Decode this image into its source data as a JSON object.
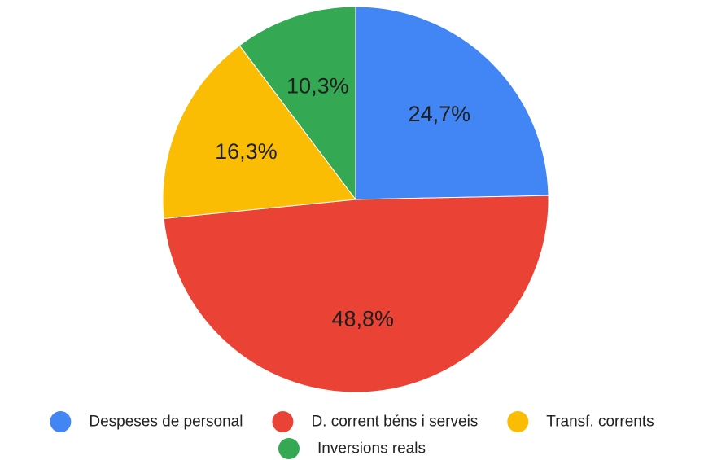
{
  "chart_data": {
    "type": "pie",
    "slices": [
      {
        "name": "Despeses de personal",
        "value": 24.7,
        "label": "24,7%",
        "color": "#4285F4"
      },
      {
        "name": "D. corrent béns i serveis",
        "value": 48.8,
        "label": "48,8%",
        "color": "#EA4335"
      },
      {
        "name": "Transf. corrents",
        "value": 16.3,
        "label": "16,3%",
        "color": "#FBBC04"
      },
      {
        "name": "Inversions reals",
        "value": 10.3,
        "label": "10,3%",
        "color": "#34A853"
      }
    ],
    "legend_position": "bottom"
  }
}
